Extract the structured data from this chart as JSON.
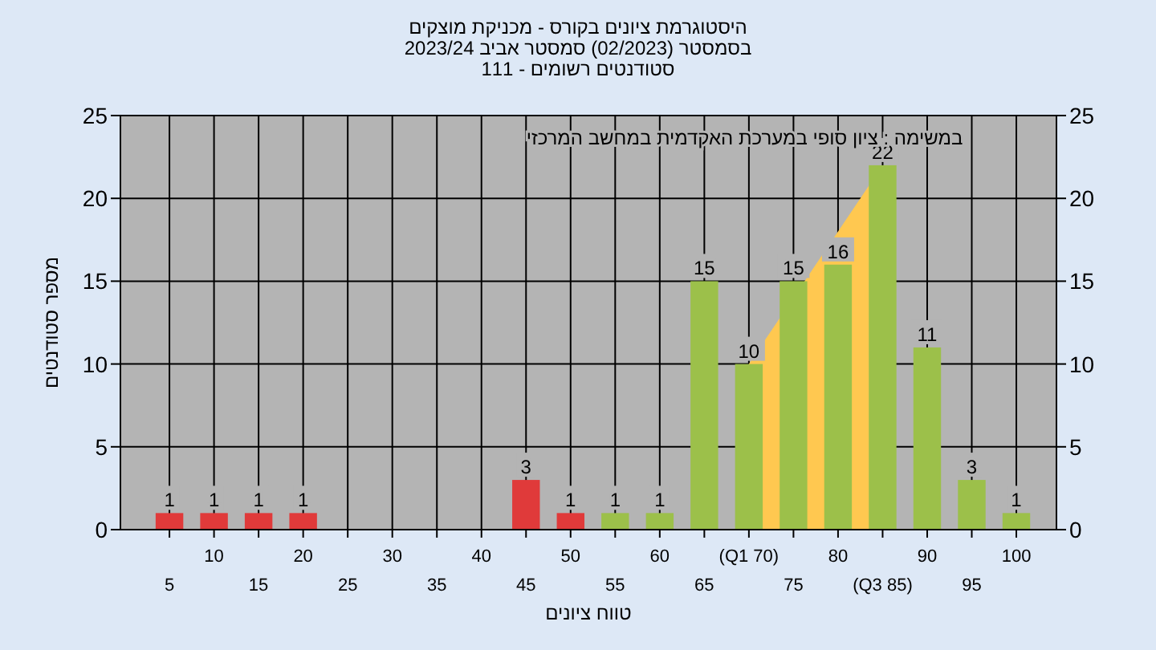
{
  "chart_data": {
    "type": "bar",
    "title": "היסטוגרמת ציונים בקורס - מכניקת מוצקים",
    "subtitle": "בסמסטר  (02/2023)  סמסטר אביב 2023/24",
    "annotations": [
      "סטודנטים רשומים - 111",
      "במשימה : ציון סופי במערכת האקדמית במחשב המרכזי"
    ],
    "xlabel": "טווח ציונים",
    "ylabel": "מספר סטודנטים",
    "categories": [
      "5",
      "10",
      "15",
      "20",
      "25",
      "30",
      "35",
      "40",
      "45",
      "50",
      "55",
      "60",
      "65",
      "(Q1 70)",
      "75",
      "80",
      "(Q3 85)",
      "90",
      "95",
      "100"
    ],
    "series": [
      {
        "type": "area",
        "color": "#ffc850",
        "values": [
          null,
          null,
          null,
          null,
          null,
          null,
          null,
          null,
          null,
          null,
          null,
          null,
          null,
          10,
          null,
          null,
          22,
          null,
          null,
          null
        ]
      },
      {
        "colors": [
          "#e03a3a",
          "#e03a3a",
          "#e03a3a",
          "#e03a3a",
          "#e03a3a",
          "#e03a3a",
          "#e03a3a",
          "#e03a3a",
          "#e03a3a",
          "#e03a3a",
          "#9cc04a",
          "#9cc04a",
          "#9cc04a",
          "#9cc04a",
          "#9cc04a",
          "#9cc04a",
          "#9cc04a",
          "#9cc04a",
          "#9cc04a",
          "#9cc04a"
        ],
        "values": [
          1,
          1,
          1,
          1,
          0,
          0,
          0,
          0,
          3,
          1,
          1,
          1,
          15,
          10,
          15,
          16,
          22,
          11,
          3,
          1
        ],
        "value_labels": [
          "1",
          "1",
          "1",
          "1",
          null,
          null,
          null,
          null,
          "3",
          "1",
          "1",
          "1",
          "15",
          "10",
          "15",
          "16",
          "22",
          "11",
          "3",
          "1"
        ]
      }
    ],
    "ylim": [
      0,
      25
    ],
    "yticks": [
      0,
      5,
      10,
      15,
      20,
      25
    ],
    "y2lim": [
      0,
      25
    ],
    "y2ticks": [
      0,
      5,
      10,
      15,
      20,
      25
    ],
    "grid": true
  }
}
